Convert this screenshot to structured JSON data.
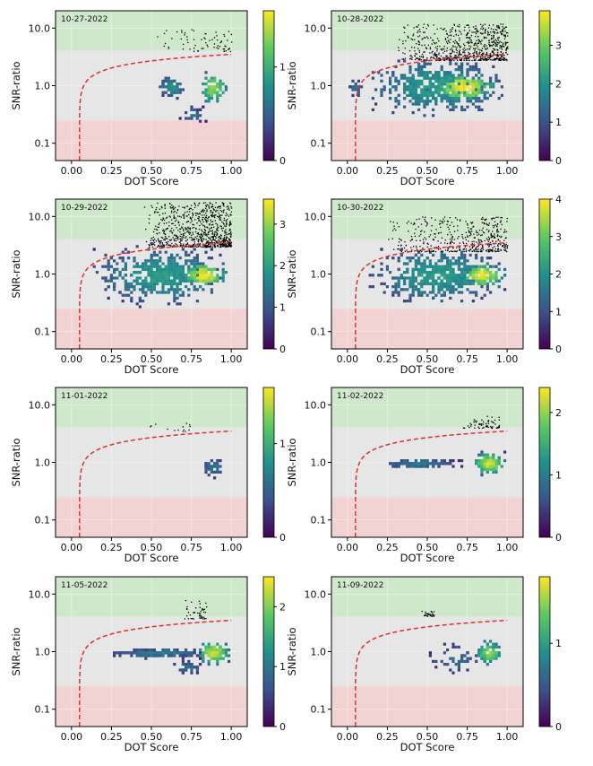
{
  "figure": {
    "shared": {
      "xlabel": "DOT Score",
      "ylabel": "SNR-ratio",
      "xlim": [
        -0.1,
        1.1
      ],
      "ylim": [
        0.05,
        20
      ],
      "xscale": "linear",
      "yscale": "log",
      "xticks": [
        "0.00",
        "0.25",
        "0.50",
        "0.75",
        "1.00"
      ],
      "xtick_values": [
        0,
        0.25,
        0.5,
        0.75,
        1.0
      ],
      "yticks": [
        "0.1",
        "1.0",
        "10.0"
      ],
      "ytick_values": [
        0.1,
        1.0,
        10.0
      ],
      "bands": [
        {
          "name": "high",
          "from": 4,
          "to": 20,
          "color": "#cfe8cb"
        },
        {
          "name": "mid",
          "from": 0.25,
          "to": 4,
          "color": "#e6e6e6"
        },
        {
          "name": "low",
          "from": 0.05,
          "to": 0.25,
          "color": "#f2d3d3"
        }
      ],
      "threshold_color": "#e0302a",
      "colormap": [
        "#440154",
        "#3b528b",
        "#21918c",
        "#5ec962",
        "#fde725"
      ]
    }
  },
  "chart_data": [
    {
      "type": "heatmap",
      "title": "10-27-2022",
      "xlabel": "DOT Score",
      "ylabel": "SNR-ratio",
      "colorbar": {
        "ticks": [
          "0",
          "1"
        ],
        "values": [
          0,
          1
        ],
        "max": 1.6
      },
      "density_blobs": [
        {
          "x": 0.62,
          "y": 1.0,
          "dx": 0.06,
          "dy": 0.12,
          "level": 0.45,
          "n": 60
        },
        {
          "x": 0.88,
          "y": 1.0,
          "dx": 0.06,
          "dy": 0.2,
          "level": 0.8,
          "n": 80
        },
        {
          "x": 0.75,
          "y": 0.33,
          "dx": 0.05,
          "dy": 0.1,
          "level": 0.3,
          "n": 25
        }
      ],
      "high_snr_points": {
        "x_range": [
          0.5,
          1.0
        ],
        "y_range": [
          4,
          10
        ],
        "n": 70
      }
    },
    {
      "type": "heatmap",
      "title": "10-28-2022",
      "xlabel": "DOT Score",
      "ylabel": "SNR-ratio",
      "colorbar": {
        "ticks": [
          "0",
          "1",
          "2",
          "3"
        ],
        "values": [
          0,
          1,
          2,
          3
        ],
        "max": 3.9
      },
      "density_blobs": [
        {
          "x": 0.55,
          "y": 1.0,
          "dx": 0.3,
          "dy": 0.35,
          "level": 0.5,
          "n": 520
        },
        {
          "x": 0.72,
          "y": 1.0,
          "dx": 0.14,
          "dy": 0.18,
          "level": 0.95,
          "n": 140
        },
        {
          "x": 0.05,
          "y": 0.95,
          "dx": 0.04,
          "dy": 0.1,
          "level": 0.3,
          "n": 20
        }
      ],
      "high_snr_points": {
        "x_range": [
          0.3,
          1.0
        ],
        "y_range": [
          2.8,
          12
        ],
        "n": 700
      }
    },
    {
      "type": "heatmap",
      "title": "10-29-2022",
      "xlabel": "DOT Score",
      "ylabel": "SNR-ratio",
      "colorbar": {
        "ticks": [
          "0",
          "1",
          "2",
          "3"
        ],
        "values": [
          0,
          1,
          2,
          3
        ],
        "max": 3.6
      },
      "density_blobs": [
        {
          "x": 0.55,
          "y": 1.0,
          "dx": 0.28,
          "dy": 0.35,
          "level": 0.5,
          "n": 480
        },
        {
          "x": 0.82,
          "y": 1.0,
          "dx": 0.1,
          "dy": 0.16,
          "level": 0.95,
          "n": 130
        }
      ],
      "high_snr_points": {
        "x_range": [
          0.45,
          1.0
        ],
        "y_range": [
          3,
          18
        ],
        "n": 800
      }
    },
    {
      "type": "heatmap",
      "title": "10-30-2022",
      "xlabel": "DOT Score",
      "ylabel": "SNR-ratio",
      "colorbar": {
        "ticks": [
          "0",
          "1",
          "2",
          "3",
          "4"
        ],
        "values": [
          0,
          1,
          2,
          3,
          4
        ],
        "max": 4.0
      },
      "density_blobs": [
        {
          "x": 0.55,
          "y": 1.0,
          "dx": 0.28,
          "dy": 0.33,
          "level": 0.5,
          "n": 480
        },
        {
          "x": 0.83,
          "y": 1.0,
          "dx": 0.1,
          "dy": 0.15,
          "level": 0.95,
          "n": 130
        }
      ],
      "high_snr_points": {
        "x_range": [
          0.25,
          1.0
        ],
        "y_range": [
          2.5,
          10
        ],
        "n": 450
      }
    },
    {
      "type": "heatmap",
      "title": "11-01-2022",
      "xlabel": "DOT Score",
      "ylabel": "SNR-ratio",
      "colorbar": {
        "ticks": [
          "0",
          "1"
        ],
        "values": [
          0,
          1
        ],
        "max": 1.6
      },
      "density_blobs": [
        {
          "x": 0.88,
          "y": 0.85,
          "dx": 0.05,
          "dy": 0.12,
          "level": 0.35,
          "n": 45
        }
      ],
      "high_snr_points": {
        "x_range": [
          0.45,
          0.75
        ],
        "y_range": [
          3.5,
          5
        ],
        "n": 14
      }
    },
    {
      "type": "heatmap",
      "title": "11-02-2022",
      "xlabel": "DOT Score",
      "ylabel": "SNR-ratio",
      "colorbar": {
        "ticks": [
          "0",
          "1",
          "2"
        ],
        "values": [
          0,
          1,
          2
        ],
        "max": 2.4
      },
      "density_blobs": [
        {
          "x": 0.45,
          "y": 1.0,
          "dx": 0.18,
          "dy": 0.05,
          "level": 0.35,
          "n": 140
        },
        {
          "x": 0.88,
          "y": 1.0,
          "dx": 0.07,
          "dy": 0.14,
          "level": 0.9,
          "n": 110
        }
      ],
      "high_snr_points": {
        "x_range": [
          0.7,
          0.95
        ],
        "y_range": [
          4,
          6.5
        ],
        "n": 60
      }
    },
    {
      "type": "heatmap",
      "title": "11-05-2022",
      "xlabel": "DOT Score",
      "ylabel": "SNR-ratio",
      "colorbar": {
        "ticks": [
          "0",
          "1",
          "2"
        ],
        "values": [
          0,
          1,
          2
        ],
        "max": 2.5
      },
      "density_blobs": [
        {
          "x": 0.55,
          "y": 1.0,
          "dx": 0.2,
          "dy": 0.05,
          "level": 0.4,
          "n": 170
        },
        {
          "x": 0.88,
          "y": 1.0,
          "dx": 0.07,
          "dy": 0.14,
          "level": 0.9,
          "n": 110
        },
        {
          "x": 0.72,
          "y": 0.55,
          "dx": 0.06,
          "dy": 0.1,
          "level": 0.3,
          "n": 40
        }
      ],
      "high_snr_points": {
        "x_range": [
          0.68,
          0.85
        ],
        "y_range": [
          3.8,
          8
        ],
        "n": 45
      }
    },
    {
      "type": "heatmap",
      "title": "11-09-2022",
      "xlabel": "DOT Score",
      "ylabel": "SNR-ratio",
      "colorbar": {
        "ticks": [
          "0",
          "1"
        ],
        "values": [
          0,
          1
        ],
        "max": 1.8
      },
      "density_blobs": [
        {
          "x": 0.88,
          "y": 1.0,
          "dx": 0.06,
          "dy": 0.14,
          "level": 0.8,
          "n": 80
        },
        {
          "x": 0.68,
          "y": 0.8,
          "dx": 0.12,
          "dy": 0.2,
          "level": 0.3,
          "n": 45
        }
      ],
      "high_snr_points": {
        "x_range": [
          0.46,
          0.54
        ],
        "y_range": [
          4.2,
          5.2
        ],
        "n": 28
      }
    }
  ]
}
